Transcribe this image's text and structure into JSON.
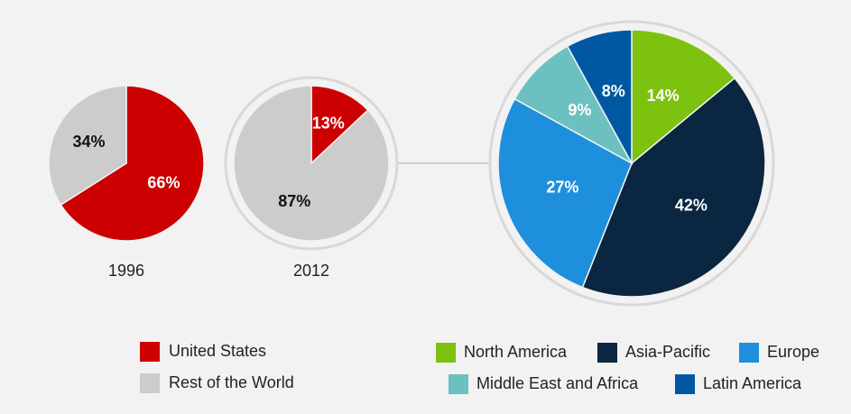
{
  "chart_data": [
    {
      "type": "pie",
      "categories": [
        "1996",
        "2012"
      ],
      "series": [
        {
          "name": "United States",
          "color": "#cc0000",
          "values": [
            66,
            13
          ],
          "value_labels": [
            "66%",
            "13%"
          ]
        },
        {
          "name": "Rest of the World",
          "color": "#cccccc",
          "values": [
            34,
            87
          ],
          "value_labels": [
            "34%",
            "87%"
          ]
        }
      ]
    },
    {
      "type": "pie",
      "categories": [
        "North America",
        "Asia-Pacific",
        "Europe",
        "Middle East and Africa",
        "Latin America"
      ],
      "values": [
        14,
        42,
        27,
        9,
        8
      ],
      "value_labels": [
        "14%",
        "42%",
        "27%",
        "9%",
        "8%"
      ],
      "colors": [
        "#7dc20f",
        "#0a2640",
        "#1e8fdc",
        "#6cc0c0",
        "#0058a3"
      ]
    }
  ]
}
